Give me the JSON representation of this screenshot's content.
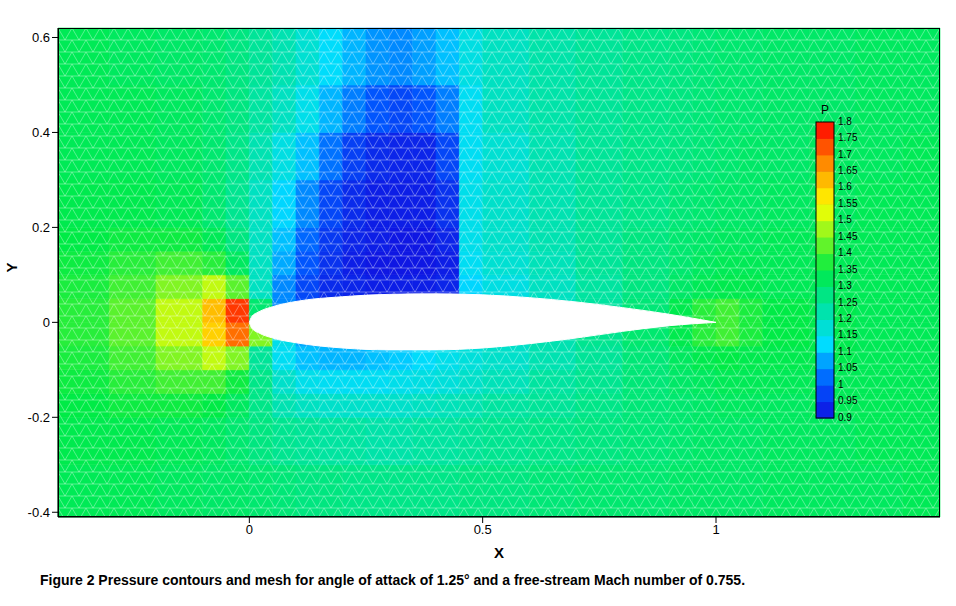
{
  "chart_data": {
    "type": "contour",
    "caption": "Figure 2 Pressure contours and mesh for angle of attack of 1.25° and a free-stream Mach number of 0.755.",
    "x_label": "X",
    "y_label": "Y",
    "xlim": [
      -0.41,
      1.48
    ],
    "ylim": [
      -0.41,
      0.62
    ],
    "xticks": [
      0,
      0.5,
      1
    ],
    "yticks": [
      -0.4,
      -0.2,
      0,
      0.2,
      0.4,
      0.6
    ],
    "x_edges": [
      -0.41,
      -0.3,
      -0.2,
      -0.1,
      -0.05,
      0,
      0.05,
      0.1,
      0.15,
      0.2,
      0.25,
      0.3,
      0.35,
      0.4,
      0.45,
      0.5,
      0.6,
      0.7,
      0.8,
      0.9,
      0.95,
      1.0,
      1.05,
      1.1,
      1.2,
      1.3,
      1.4,
      1.48
    ],
    "y_edges": [
      -0.41,
      -0.3,
      -0.2,
      -0.15,
      -0.1,
      -0.05,
      0,
      0.05,
      0.1,
      0.15,
      0.2,
      0.3,
      0.4,
      0.5,
      0.62
    ],
    "cells": [
      [
        1.33,
        1.33,
        1.32,
        1.31,
        1.31,
        1.3,
        1.29,
        1.28,
        1.28,
        1.27,
        1.27,
        1.27,
        1.27,
        1.27,
        1.28,
        1.28,
        1.29,
        1.3,
        1.3,
        1.31,
        1.31,
        1.31,
        1.31,
        1.32,
        1.32,
        1.32,
        1.33
      ],
      [
        1.34,
        1.34,
        1.33,
        1.32,
        1.3,
        1.28,
        1.26,
        1.25,
        1.24,
        1.24,
        1.23,
        1.23,
        1.24,
        1.24,
        1.25,
        1.26,
        1.27,
        1.28,
        1.29,
        1.3,
        1.31,
        1.31,
        1.31,
        1.32,
        1.32,
        1.33,
        1.33
      ],
      [
        1.35,
        1.36,
        1.36,
        1.35,
        1.32,
        1.27,
        1.22,
        1.2,
        1.19,
        1.19,
        1.19,
        1.19,
        1.2,
        1.21,
        1.22,
        1.24,
        1.25,
        1.27,
        1.29,
        1.3,
        1.31,
        1.32,
        1.32,
        1.32,
        1.33,
        1.33,
        1.33
      ],
      [
        1.36,
        1.38,
        1.4,
        1.4,
        1.36,
        1.27,
        1.19,
        1.15,
        1.14,
        1.14,
        1.14,
        1.15,
        1.16,
        1.17,
        1.19,
        1.21,
        1.24,
        1.26,
        1.29,
        1.31,
        1.32,
        1.33,
        1.33,
        1.33,
        1.33,
        1.33,
        1.33
      ],
      [
        1.37,
        1.4,
        1.45,
        1.5,
        1.45,
        1.25,
        1.14,
        1.1,
        1.09,
        1.09,
        1.1,
        1.11,
        1.13,
        1.15,
        1.17,
        1.19,
        1.22,
        1.25,
        1.29,
        1.32,
        1.34,
        1.35,
        1.34,
        1.34,
        1.34,
        1.33,
        1.33
      ],
      [
        1.38,
        1.42,
        1.5,
        1.6,
        1.7,
        1.45,
        1.15,
        1.08,
        1.07,
        1.07,
        1.08,
        1.1,
        1.12,
        1.14,
        1.16,
        1.19,
        1.22,
        1.26,
        1.3,
        1.34,
        1.38,
        1.4,
        1.37,
        1.35,
        1.34,
        1.33,
        1.33
      ],
      [
        1.38,
        1.42,
        1.5,
        1.62,
        1.75,
        1.3,
        1.05,
        1.0,
        0.97,
        0.96,
        0.96,
        0.96,
        0.97,
        0.98,
        1.12,
        1.16,
        1.2,
        1.24,
        1.29,
        1.34,
        1.38,
        1.4,
        1.37,
        1.35,
        1.34,
        1.33,
        1.33
      ],
      [
        1.37,
        1.4,
        1.45,
        1.5,
        1.42,
        1.2,
        1.05,
        0.98,
        0.94,
        0.93,
        0.92,
        0.92,
        0.92,
        0.93,
        1.12,
        1.16,
        1.2,
        1.24,
        1.28,
        1.31,
        1.33,
        1.34,
        1.34,
        1.33,
        1.33,
        1.33,
        1.33
      ],
      [
        1.36,
        1.38,
        1.4,
        1.38,
        1.32,
        1.2,
        1.08,
        1.0,
        0.95,
        0.92,
        0.91,
        0.91,
        0.91,
        0.92,
        1.14,
        1.18,
        1.21,
        1.25,
        1.28,
        1.3,
        1.32,
        1.33,
        1.33,
        1.33,
        1.33,
        1.33,
        1.33
      ],
      [
        1.35,
        1.36,
        1.36,
        1.33,
        1.28,
        1.2,
        1.1,
        1.02,
        0.96,
        0.93,
        0.92,
        0.91,
        0.91,
        0.93,
        1.15,
        1.19,
        1.22,
        1.25,
        1.28,
        1.3,
        1.31,
        1.32,
        1.32,
        1.33,
        1.33,
        1.33,
        1.33
      ],
      [
        1.34,
        1.34,
        1.33,
        1.3,
        1.26,
        1.2,
        1.12,
        1.05,
        0.98,
        0.94,
        0.92,
        0.92,
        0.92,
        0.95,
        1.15,
        1.19,
        1.22,
        1.25,
        1.27,
        1.29,
        1.3,
        1.31,
        1.31,
        1.32,
        1.32,
        1.33,
        1.33
      ],
      [
        1.33,
        1.33,
        1.32,
        1.3,
        1.27,
        1.22,
        1.16,
        1.1,
        1.03,
        0.97,
        0.94,
        0.93,
        0.93,
        0.98,
        1.14,
        1.18,
        1.22,
        1.25,
        1.27,
        1.28,
        1.29,
        1.3,
        1.31,
        1.31,
        1.32,
        1.32,
        1.33
      ],
      [
        1.33,
        1.33,
        1.32,
        1.3,
        1.28,
        1.24,
        1.2,
        1.15,
        1.09,
        1.04,
        1.0,
        0.98,
        1.0,
        1.04,
        1.14,
        1.2,
        1.23,
        1.25,
        1.27,
        1.28,
        1.29,
        1.3,
        1.3,
        1.31,
        1.31,
        1.32,
        1.32
      ],
      [
        1.33,
        1.32,
        1.31,
        1.3,
        1.28,
        1.25,
        1.22,
        1.18,
        1.13,
        1.09,
        1.06,
        1.05,
        1.07,
        1.1,
        1.16,
        1.2,
        1.23,
        1.25,
        1.27,
        1.28,
        1.29,
        1.3,
        1.3,
        1.31,
        1.31,
        1.32,
        1.32
      ]
    ],
    "colorbar": {
      "label": "P",
      "range": [
        0.9,
        1.8
      ],
      "ticks": [
        0.9,
        0.95,
        1,
        1.05,
        1.1,
        1.15,
        1.2,
        1.25,
        1.3,
        1.35,
        1.4,
        1.45,
        1.5,
        1.55,
        1.6,
        1.65,
        1.7,
        1.75,
        1.8
      ]
    },
    "airfoil": {
      "x": [
        0,
        0.005,
        0.02,
        0.05,
        0.1,
        0.2,
        0.3,
        0.4,
        0.5,
        0.6,
        0.7,
        0.8,
        0.9,
        1.0
      ],
      "upper": [
        0,
        0.012,
        0.022,
        0.033,
        0.044,
        0.054,
        0.059,
        0.06,
        0.058,
        0.052,
        0.043,
        0.031,
        0.017,
        0.0
      ],
      "lower": [
        0,
        -0.012,
        -0.022,
        -0.033,
        -0.043,
        -0.054,
        -0.058,
        -0.058,
        -0.054,
        -0.045,
        -0.033,
        -0.019,
        -0.007,
        0.0
      ]
    }
  }
}
